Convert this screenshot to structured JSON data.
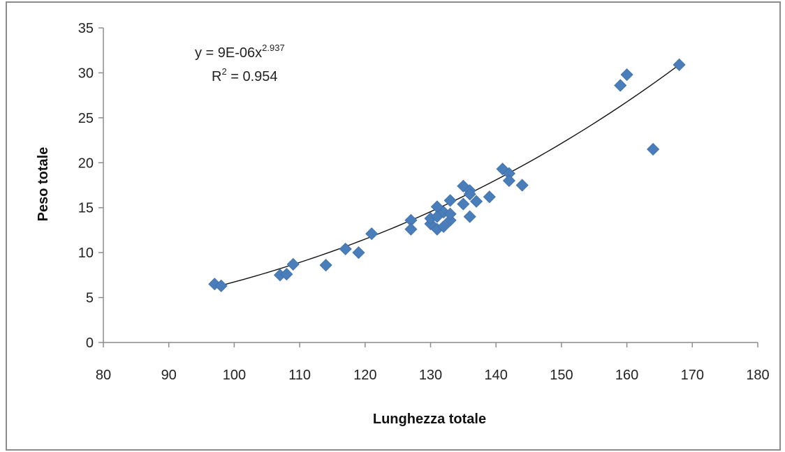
{
  "chart_data": {
    "type": "scatter",
    "xlabel": "Lunghezza totale",
    "ylabel": "Peso totale",
    "xlim": [
      80,
      180
    ],
    "ylim": [
      0,
      35
    ],
    "x_ticks": [
      80,
      90,
      100,
      110,
      120,
      130,
      140,
      150,
      160,
      170,
      180
    ],
    "y_ticks": [
      0,
      5,
      10,
      15,
      20,
      25,
      30,
      35
    ],
    "grid": false,
    "legend": "none",
    "marker": "diamond",
    "marker_color": "#4a7ebb",
    "trend_color": "#111111",
    "series": [
      {
        "points": [
          [
            97,
            6.5
          ],
          [
            98,
            6.3
          ],
          [
            107,
            7.5
          ],
          [
            108,
            7.6
          ],
          [
            109,
            8.7
          ],
          [
            114,
            8.6
          ],
          [
            117,
            10.4
          ],
          [
            119,
            10.0
          ],
          [
            121,
            12.1
          ],
          [
            127,
            13.6
          ],
          [
            127,
            12.6
          ],
          [
            130,
            13.2
          ],
          [
            130,
            13.8
          ],
          [
            131,
            15.1
          ],
          [
            131,
            12.6
          ],
          [
            131,
            14.0
          ],
          [
            132,
            12.9
          ],
          [
            132,
            14.5
          ],
          [
            133,
            15.8
          ],
          [
            133,
            13.6
          ],
          [
            133,
            14.3
          ],
          [
            135,
            17.4
          ],
          [
            135,
            15.4
          ],
          [
            136,
            16.9
          ],
          [
            136,
            16.5
          ],
          [
            136,
            14.0
          ],
          [
            137,
            15.7
          ],
          [
            139,
            16.2
          ],
          [
            141,
            19.3
          ],
          [
            142,
            18.8
          ],
          [
            142,
            18.0
          ],
          [
            144,
            17.5
          ],
          [
            159,
            28.6
          ],
          [
            160,
            29.8
          ],
          [
            164,
            21.5
          ],
          [
            168,
            30.9
          ]
        ]
      }
    ],
    "trendline": {
      "type": "power",
      "coefficient": 9e-06,
      "exponent": 2.937,
      "x_range": [
        97,
        168
      ]
    },
    "annotations": {
      "equation_prefix": "y = 9E-06x",
      "equation_exponent": "2.937",
      "r2_prefix": "R",
      "r2_sup": "2",
      "r2_value": " = 0.954"
    }
  }
}
